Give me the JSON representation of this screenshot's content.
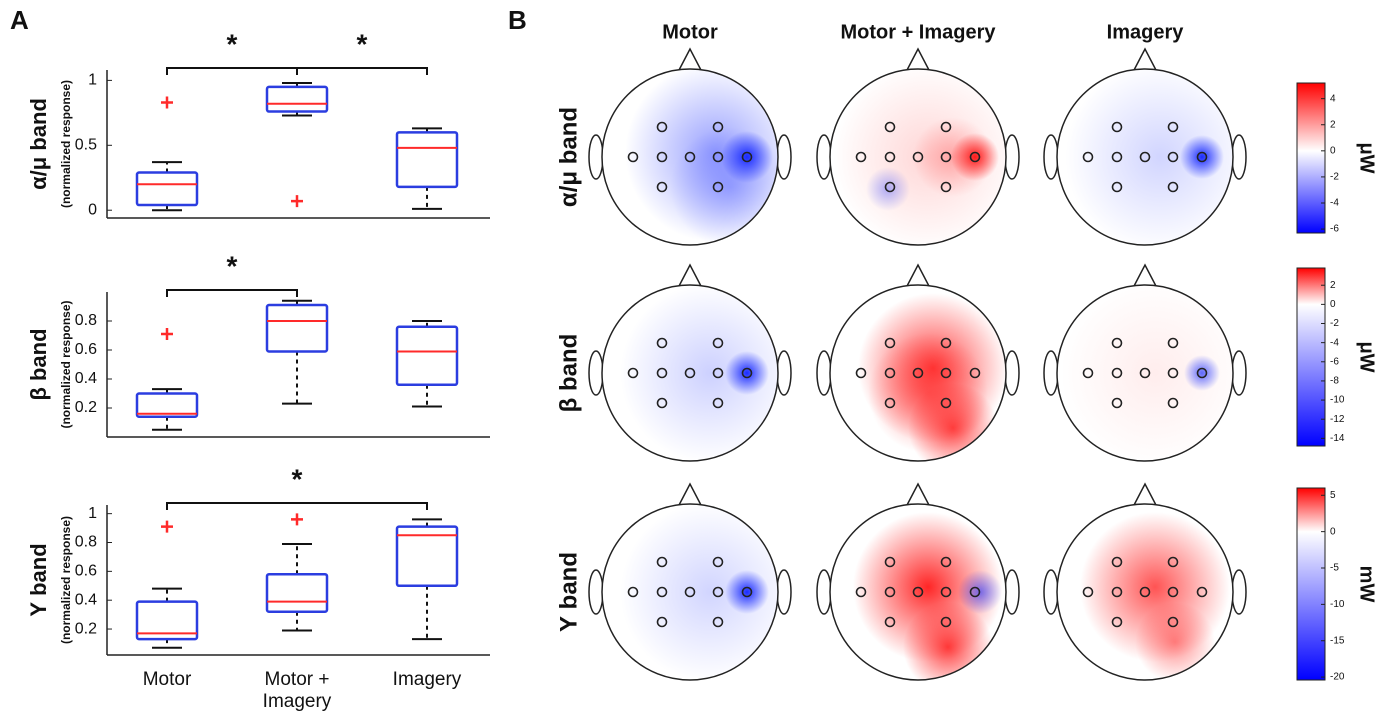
{
  "panel_labels": [
    "A",
    "B"
  ],
  "chart_data": [
    {
      "type": "box",
      "ylabel": "α/μ band",
      "ysublabel": "(normalized response)",
      "ylim": [
        -0.06,
        1.08
      ],
      "yticks": [
        0,
        0.5,
        1
      ],
      "box_color": "#2b3de0",
      "median_color": "#ff2a2a",
      "outlier_color": "#ff2a2a",
      "boxes": [
        {
          "whisker_low": 0.0,
          "q1": 0.04,
          "median": 0.2,
          "q3": 0.29,
          "whisker_high": 0.37,
          "outliers": [
            0.83
          ]
        },
        {
          "whisker_low": 0.73,
          "q1": 0.76,
          "median": 0.82,
          "q3": 0.95,
          "whisker_high": 0.98,
          "outliers": [
            0.07
          ]
        },
        {
          "whisker_low": 0.01,
          "q1": 0.18,
          "median": 0.48,
          "q3": 0.6,
          "whisker_high": 0.63,
          "outliers": []
        }
      ],
      "significance": [
        {
          "pair": [
            0,
            1
          ],
          "label": "*"
        },
        {
          "pair": [
            1,
            2
          ],
          "label": "*"
        }
      ]
    },
    {
      "type": "box",
      "ylabel": "β band",
      "ysublabel": "(normalized response)",
      "ylim": [
        0,
        1.0
      ],
      "yticks": [
        0.2,
        0.4,
        0.6,
        0.8
      ],
      "box_color": "#2b3de0",
      "median_color": "#ff2a2a",
      "outlier_color": "#ff2a2a",
      "boxes": [
        {
          "whisker_low": 0.05,
          "q1": 0.14,
          "median": 0.16,
          "q3": 0.3,
          "whisker_high": 0.33,
          "outliers": [
            0.71
          ]
        },
        {
          "whisker_low": 0.23,
          "q1": 0.59,
          "median": 0.8,
          "q3": 0.91,
          "whisker_high": 0.94,
          "outliers": []
        },
        {
          "whisker_low": 0.21,
          "q1": 0.36,
          "median": 0.59,
          "q3": 0.76,
          "whisker_high": 0.8,
          "outliers": []
        }
      ],
      "significance": [
        {
          "pair": [
            0,
            1
          ],
          "label": "*"
        }
      ]
    },
    {
      "type": "box",
      "ylabel": "Υ band",
      "ysublabel": "(normalized response)",
      "ylim": [
        0.02,
        1.06
      ],
      "yticks": [
        0.2,
        0.4,
        0.6,
        0.8,
        1
      ],
      "categories": [
        "Motor",
        "Motor + Imagery",
        "Imagery"
      ],
      "box_color": "#2b3de0",
      "median_color": "#ff2a2a",
      "outlier_color": "#ff2a2a",
      "boxes": [
        {
          "whisker_low": 0.07,
          "q1": 0.13,
          "median": 0.17,
          "q3": 0.39,
          "whisker_high": 0.48,
          "outliers": [
            0.91
          ]
        },
        {
          "whisker_low": 0.19,
          "q1": 0.32,
          "median": 0.39,
          "q3": 0.58,
          "whisker_high": 0.79,
          "outliers": [
            0.96
          ]
        },
        {
          "whisker_low": 0.13,
          "q1": 0.5,
          "median": 0.85,
          "q3": 0.91,
          "whisker_high": 0.96,
          "outliers": []
        }
      ],
      "significance": [
        {
          "pair": [
            0,
            2
          ],
          "label": "*"
        }
      ]
    }
  ],
  "topomaps": {
    "columns": [
      "Motor",
      "Motor + Imagery",
      "Imagery"
    ],
    "rows": [
      "α/μ band",
      "β band",
      "Υ band"
    ],
    "colorbars": [
      {
        "unit": "μW",
        "lim": [
          -6.3,
          5.2
        ],
        "ticks": [
          4,
          2,
          0,
          -2,
          -4,
          -6
        ]
      },
      {
        "unit": "μW",
        "lim": [
          -14.8,
          3.8
        ],
        "ticks": [
          2,
          0,
          -2,
          -4,
          -6,
          -8,
          -10,
          -12,
          -14
        ]
      },
      {
        "unit": "mW",
        "lim": [
          -20.4,
          6
        ],
        "ticks": [
          5,
          0,
          -5,
          -10,
          -15,
          -20
        ]
      }
    ]
  }
}
